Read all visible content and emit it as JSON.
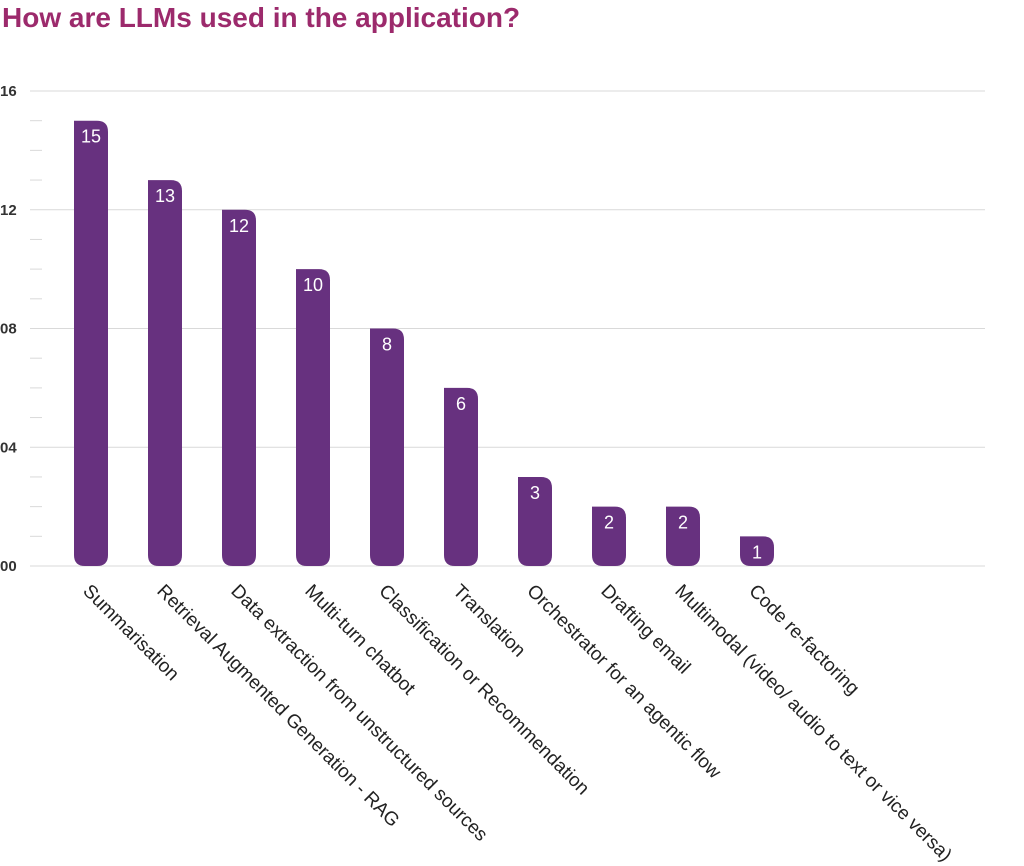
{
  "chart_data": {
    "type": "bar",
    "title": "How are LLMs used in the application?",
    "xlabel": "",
    "ylabel": "",
    "categories": [
      "Summarisation",
      "Retrieval Augmented Generation - RAG",
      "Data extraction from unstructured sources",
      "Multi-turn chatbot",
      "Classification or Recommendation",
      "Translation",
      "Orchestrator for an agentic flow",
      "Drafting email",
      "Multimodal (video/ audio to text or vice versa)",
      "Code re-factoring"
    ],
    "values": [
      15,
      13,
      12,
      10,
      8,
      6,
      3,
      2,
      2,
      1
    ],
    "data_labels": [
      "15",
      "13",
      "12",
      "10",
      "8",
      "6",
      "3",
      "2",
      "2",
      "1"
    ],
    "ylim": [
      0,
      16
    ],
    "y_ticks": [
      0,
      4,
      8,
      12,
      16
    ],
    "y_tick_labels": [
      "00",
      "04",
      "08",
      "12",
      "16"
    ],
    "grid": true,
    "legend": "none",
    "bar_color": "#67317f",
    "title_color": "#9c2a6c",
    "grid_color": "#d9d9d9"
  }
}
